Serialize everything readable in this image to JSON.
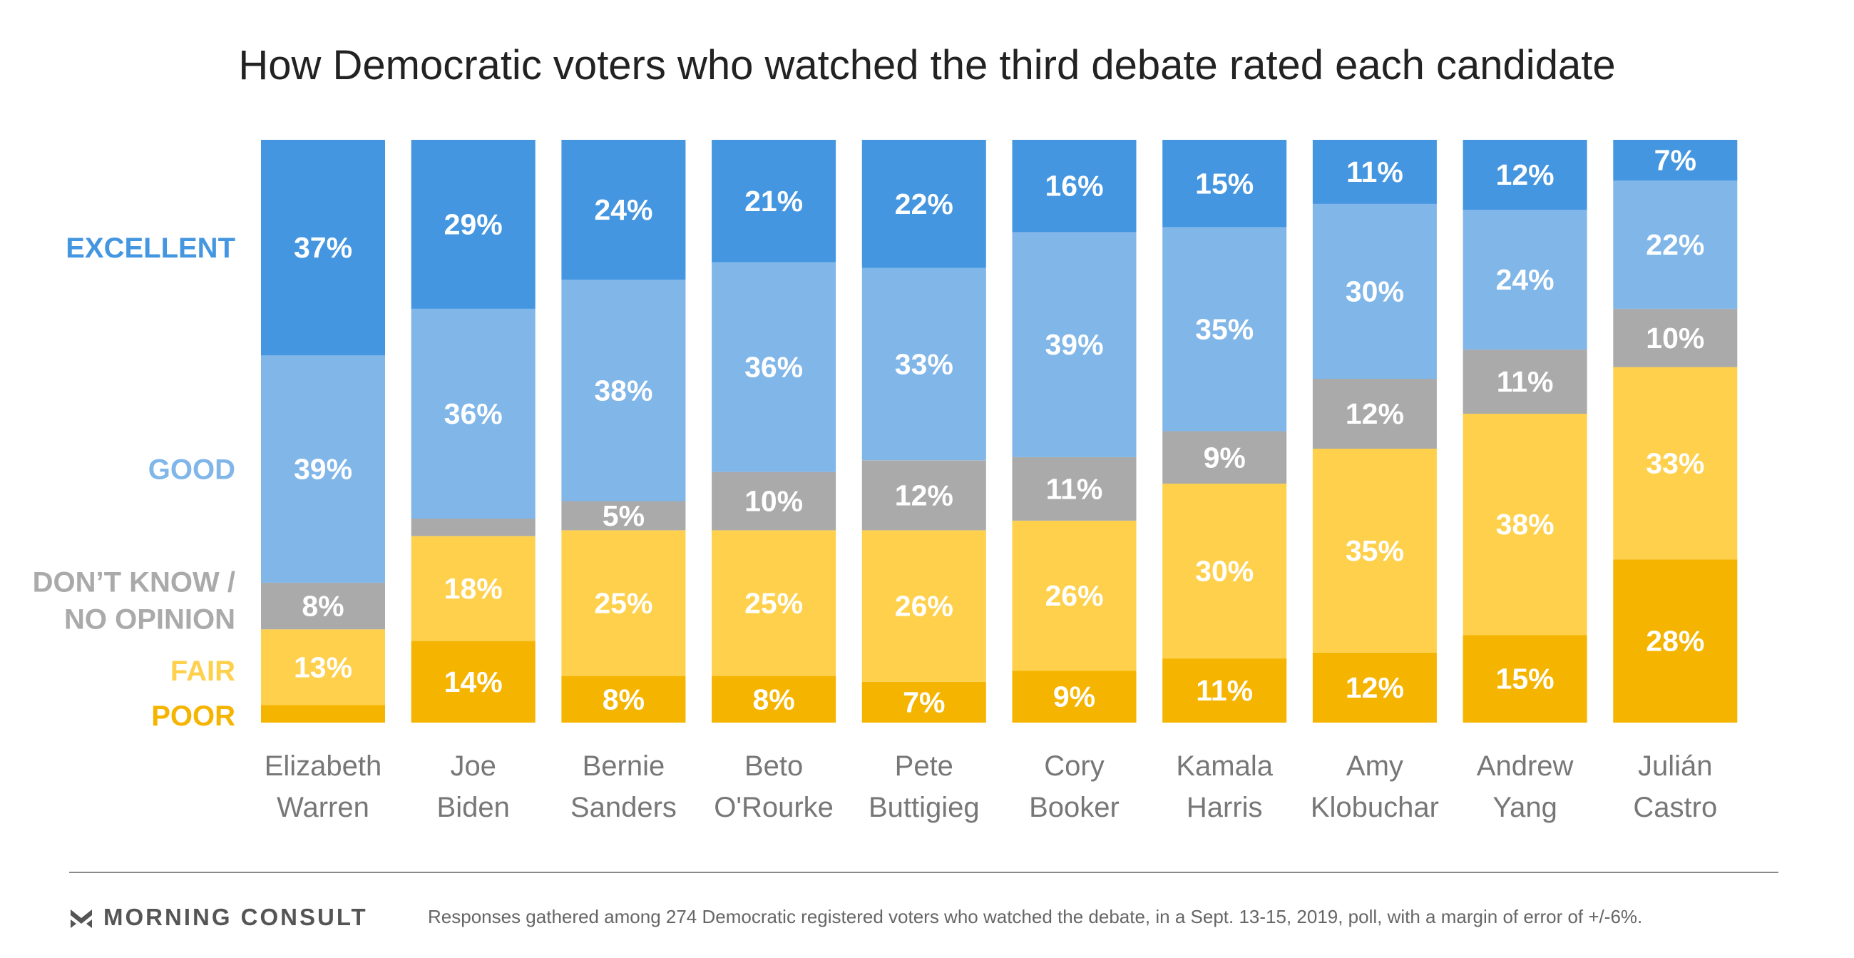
{
  "colors": {
    "excellent": "#4496e0",
    "good": "#80b6e8",
    "dont_know": "#aaaaaa",
    "fair": "#fed04c",
    "poor": "#f5b400",
    "title": "#222222",
    "candidate_label": "#777777"
  },
  "chart_data": {
    "type": "bar",
    "stacked": true,
    "orientation": "vertical",
    "title": "How Democratic voters who watched the third debate rated each candidate",
    "categories": [
      [
        "Elizabeth",
        "Warren"
      ],
      [
        "Joe",
        "Biden"
      ],
      [
        "Bernie",
        "Sanders"
      ],
      [
        "Beto",
        "O'Rourke"
      ],
      [
        "Pete",
        "Buttigieg"
      ],
      [
        "Cory",
        "Booker"
      ],
      [
        "Kamala",
        "Harris"
      ],
      [
        "Amy",
        "Klobuchar"
      ],
      [
        "Andrew",
        "Yang"
      ],
      [
        "Julián",
        "Castro"
      ]
    ],
    "series": [
      {
        "key": "poor",
        "name": "POOR",
        "values": [
          3,
          14,
          8,
          8,
          7,
          9,
          11,
          12,
          15,
          28
        ],
        "labels": [
          "",
          "14%",
          "8%",
          "8%",
          "7%",
          "9%",
          "11%",
          "12%",
          "15%",
          "28%"
        ]
      },
      {
        "key": "fair",
        "name": "FAIR",
        "values": [
          13,
          18,
          25,
          25,
          26,
          26,
          30,
          35,
          38,
          33
        ],
        "labels": [
          "13%",
          "18%",
          "25%",
          "25%",
          "26%",
          "26%",
          "30%",
          "35%",
          "38%",
          "33%"
        ]
      },
      {
        "key": "dont_know",
        "name": "DON’T KNOW / NO OPINION",
        "values": [
          8,
          3,
          5,
          10,
          12,
          11,
          9,
          12,
          11,
          10
        ],
        "labels": [
          "8%",
          "",
          "5%",
          "10%",
          "12%",
          "11%",
          "9%",
          "12%",
          "11%",
          "10%"
        ]
      },
      {
        "key": "good",
        "name": "GOOD",
        "values": [
          39,
          36,
          38,
          36,
          33,
          39,
          35,
          30,
          24,
          22
        ],
        "labels": [
          "39%",
          "36%",
          "38%",
          "36%",
          "33%",
          "39%",
          "35%",
          "30%",
          "24%",
          "22%"
        ]
      },
      {
        "key": "excellent",
        "name": "EXCELLENT",
        "values": [
          37,
          29,
          24,
          21,
          22,
          16,
          15,
          11,
          12,
          7
        ],
        "labels": [
          "37%",
          "29%",
          "24%",
          "21%",
          "22%",
          "16%",
          "15%",
          "11%",
          "12%",
          "7%"
        ]
      }
    ],
    "legend_lines": {
      "excellent": [
        "EXCELLENT"
      ],
      "good": [
        "GOOD"
      ],
      "dont_know": [
        "DON’T KNOW /",
        "NO OPINION"
      ],
      "fair": [
        "FAIR"
      ],
      "poor": [
        "POOR"
      ]
    },
    "legend_placement": "left",
    "grid": false
  },
  "footer": {
    "brand": "MORNING CONSULT",
    "note": "Responses gathered among 274 Democratic registered voters who watched the debate, in a Sept. 13-15, 2019, poll, with a margin of error of +/-6%."
  }
}
